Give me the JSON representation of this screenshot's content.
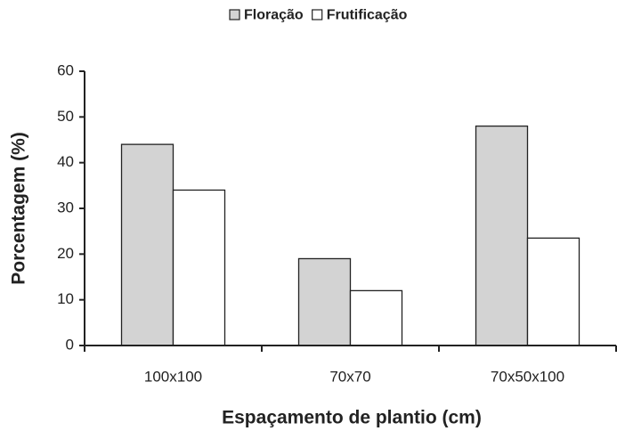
{
  "chart_data": {
    "type": "bar",
    "x_label": "Espaçamento de plantio (cm)",
    "y_label": "Porcentagem (%)",
    "categories": [
      "100x100",
      "70x70",
      "70x50x100"
    ],
    "series": [
      {
        "name": "Floração",
        "color": "#d3d3d3",
        "values": [
          44,
          19,
          48
        ]
      },
      {
        "name": "Frutificação",
        "color": "#ffffff",
        "values": [
          34,
          12,
          23.5
        ]
      }
    ],
    "ylim": [
      0,
      60
    ],
    "yticks": [
      0,
      10,
      20,
      30,
      40,
      50,
      60
    ],
    "legend": "top"
  }
}
